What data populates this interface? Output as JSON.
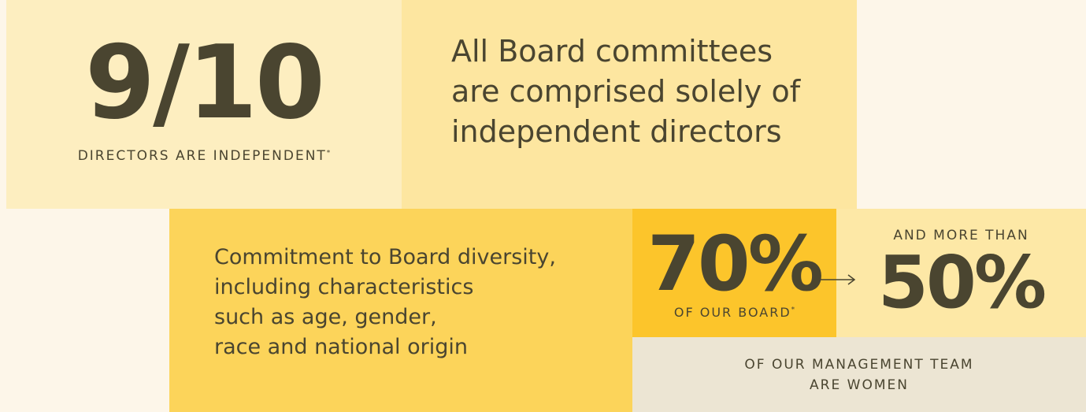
{
  "independence": {
    "stat": "9/10",
    "caption": "DIRECTORS ARE INDEPENDENT",
    "footnote_mark": "*"
  },
  "committees": {
    "lines": [
      "All Board committees",
      "are comprised solely of",
      "independent directors"
    ]
  },
  "diversity": {
    "lines": [
      "Commitment to Board diversity,",
      "including characteristics",
      "such as age, gender,",
      "race and national origin"
    ]
  },
  "board_women": {
    "stat": "70%",
    "caption": "OF OUR BOARD",
    "footnote_mark": "*"
  },
  "management_women": {
    "lead": "AND MORE THAN",
    "stat": "50%",
    "caption_lines": [
      "OF OUR MANAGEMENT TEAM",
      "ARE WOMEN"
    ]
  }
}
